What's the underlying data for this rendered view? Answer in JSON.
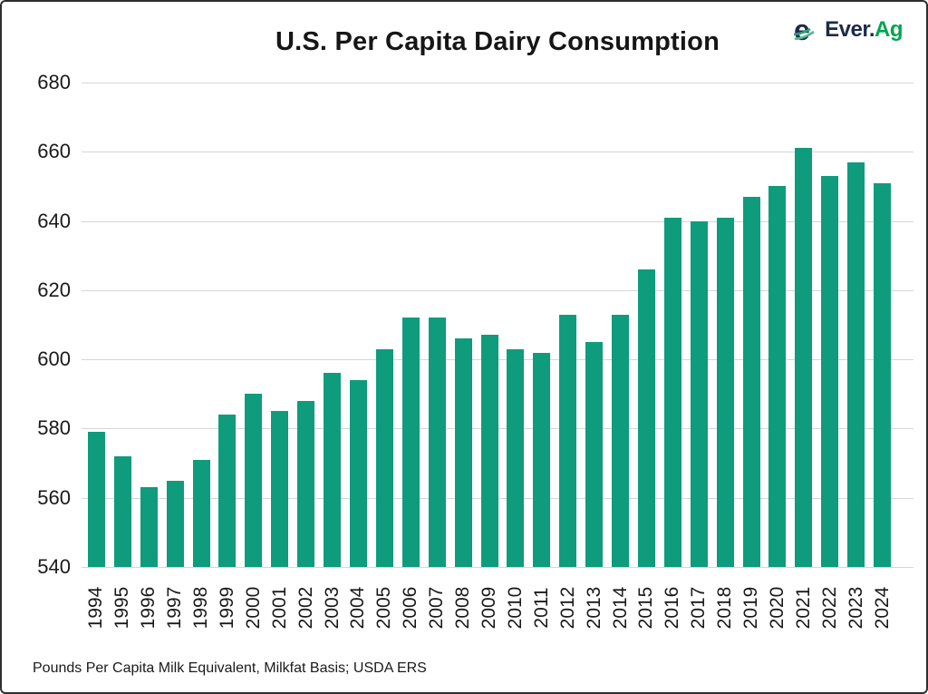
{
  "header": {
    "logo": {
      "prefix": "Ever.",
      "suffix": "Ag"
    }
  },
  "footnote": "Pounds Per Capita Milk Equivalent, Milkfat Basis; USDA ERS",
  "colors": {
    "bar": "#0e9c7c",
    "grid": "#d6d6d6",
    "text": "#1a1a1a",
    "logo_navy": "#1c2b4a",
    "logo_green": "#00a550"
  },
  "chart_data": {
    "type": "bar",
    "title": "U.S. Per Capita Dairy Consumption",
    "categories": [
      "1994",
      "1995",
      "1996",
      "1997",
      "1998",
      "1999",
      "2000",
      "2001",
      "2002",
      "2003",
      "2004",
      "2005",
      "2006",
      "2007",
      "2008",
      "2009",
      "2010",
      "2011",
      "2012",
      "2013",
      "2014",
      "2015",
      "2016",
      "2017",
      "2018",
      "2019",
      "2020",
      "2021",
      "2022",
      "2023",
      "2024"
    ],
    "values": [
      579,
      572,
      563,
      565,
      571,
      584,
      590,
      585,
      588,
      596,
      594,
      603,
      612,
      612,
      606,
      607,
      603,
      602,
      613,
      605,
      613,
      626,
      641,
      640,
      641,
      647,
      650,
      661,
      653,
      657,
      651
    ],
    "xlabel": "",
    "ylabel": "",
    "ylim": [
      540,
      680
    ],
    "yticks": [
      540,
      560,
      580,
      600,
      620,
      640,
      660,
      680
    ],
    "grid": true,
    "legend": false,
    "source_note": "Pounds Per Capita Milk Equivalent, Milkfat Basis; USDA ERS"
  }
}
